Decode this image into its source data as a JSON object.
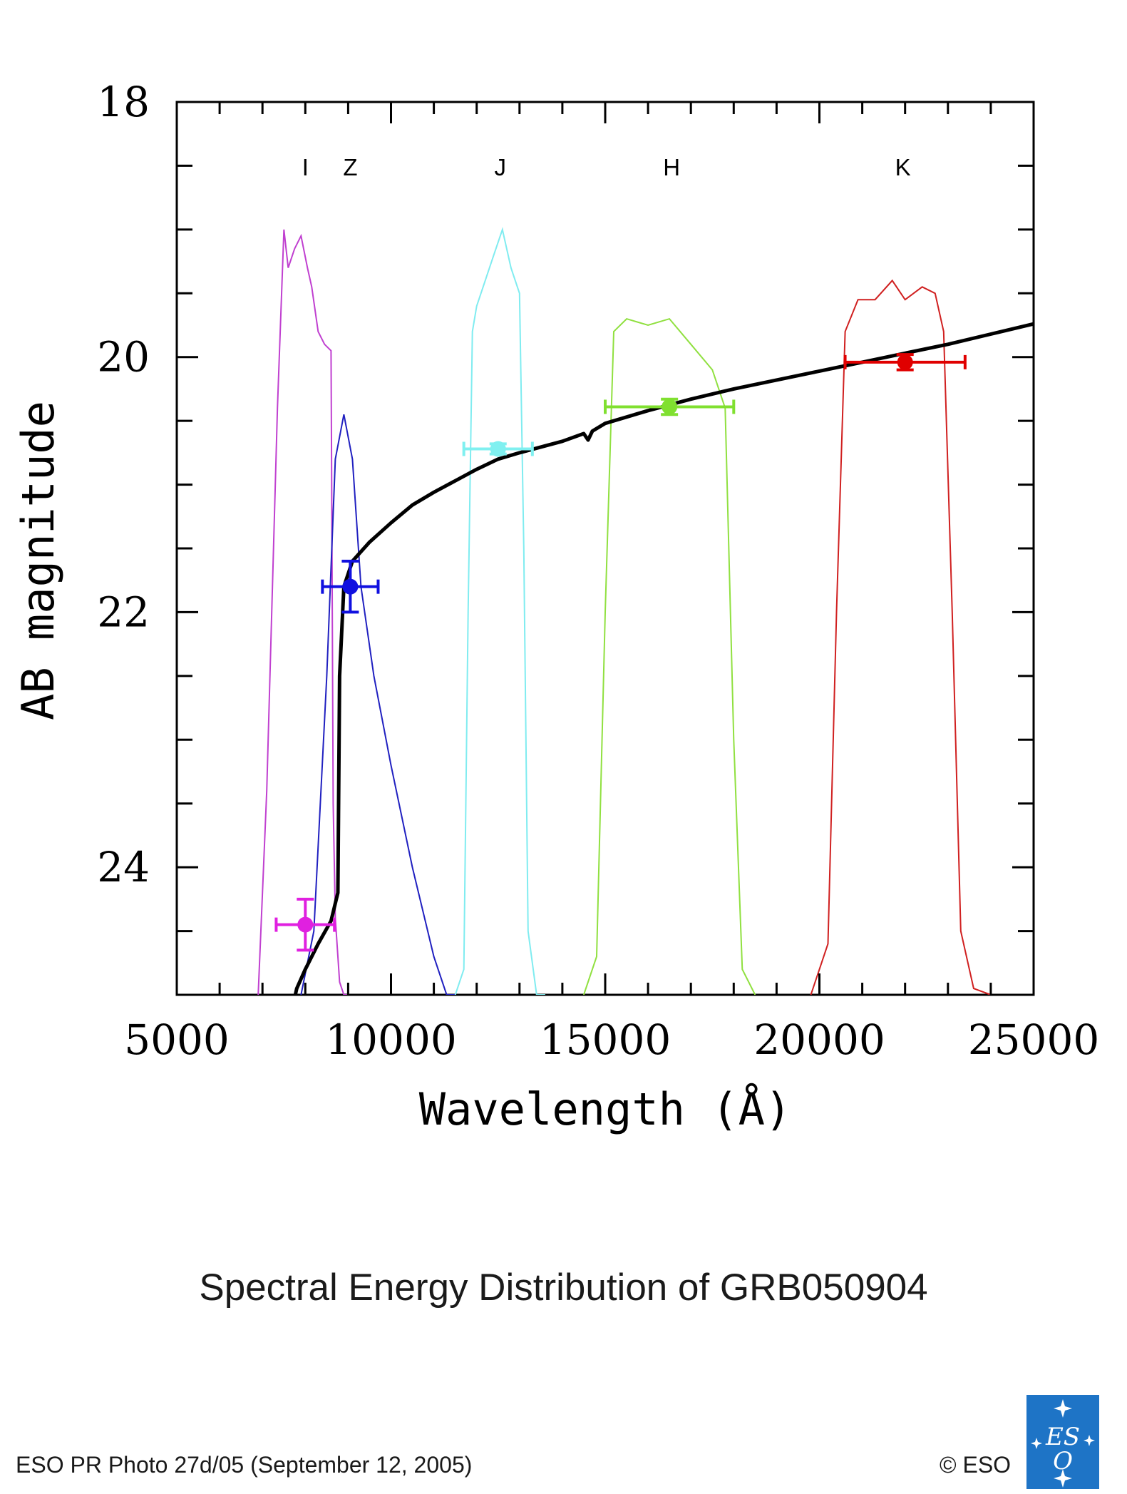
{
  "chart_data": {
    "type": "scatter",
    "title": "Spectral Energy Distribution of GRB050904",
    "xlabel": "Wavelength (Å)",
    "ylabel": "AB magnitude",
    "xlim": [
      5000,
      25000
    ],
    "ylim": [
      25,
      18
    ],
    "y_inverted": true,
    "x_ticks": [
      5000,
      10000,
      15000,
      20000,
      25000
    ],
    "x_tick_labels": [
      "5000",
      "10000",
      "15000",
      "20000",
      "25000"
    ],
    "y_ticks": [
      18,
      20,
      22,
      24
    ],
    "y_tick_labels": [
      "18",
      "20",
      "22",
      "24"
    ],
    "grid": false,
    "band_labels": [
      {
        "text": "I",
        "x": 8000
      },
      {
        "text": "Z",
        "x": 9050
      },
      {
        "text": "J",
        "x": 12550
      },
      {
        "text": "H",
        "x": 16550
      },
      {
        "text": "K",
        "x": 21950
      }
    ],
    "photometry": [
      {
        "band": "I",
        "x": 8000,
        "y": 24.45,
        "xerr": [
          680,
          680
        ],
        "yerr": [
          0.2,
          0.2
        ],
        "color": "#e020e0"
      },
      {
        "band": "Z",
        "x": 9050,
        "y": 21.8,
        "xerr": [
          650,
          650
        ],
        "yerr": [
          0.2,
          0.2
        ],
        "color": "#1010e0"
      },
      {
        "band": "J",
        "x": 12500,
        "y": 20.72,
        "xerr": [
          800,
          800
        ],
        "yerr": [
          0.04,
          0.04
        ],
        "color": "#80f0f0"
      },
      {
        "band": "H",
        "x": 16500,
        "y": 20.39,
        "xerr": [
          1500,
          1500
        ],
        "yerr": [
          0.06,
          0.06
        ],
        "color": "#80e030"
      },
      {
        "band": "K",
        "x": 22000,
        "y": 20.04,
        "xerr": [
          1400,
          1400
        ],
        "yerr": [
          0.06,
          0.06
        ],
        "color": "#e00000"
      }
    ],
    "model_curve": {
      "color": "#000000",
      "x": [
        7700,
        7800,
        8000,
        8300,
        8600,
        8760,
        8800,
        8900,
        9100,
        9500,
        10000,
        10500,
        11000,
        11500,
        12000,
        12500,
        13000,
        14000,
        14500,
        14600,
        14700,
        15000,
        16000,
        17000,
        18000,
        19000,
        20000,
        21000,
        22000,
        23000,
        24000,
        25000
      ],
      "y": [
        25.1,
        24.95,
        24.8,
        24.6,
        24.42,
        24.2,
        22.5,
        21.8,
        21.6,
        21.45,
        21.3,
        21.16,
        21.06,
        20.97,
        20.88,
        20.8,
        20.75,
        20.66,
        20.6,
        20.65,
        20.58,
        20.52,
        20.42,
        20.33,
        20.25,
        20.18,
        20.11,
        20.04,
        19.97,
        19.9,
        19.82,
        19.74
      ]
    },
    "filter_curves": [
      {
        "band": "I",
        "color": "#c040d0",
        "x": [
          6900,
          7100,
          7350,
          7500,
          7600,
          7750,
          7900,
          8050,
          8150,
          8300,
          8450,
          8600,
          8650,
          8700,
          8800,
          8900,
          9000
        ],
        "y": [
          25.0,
          23.4,
          20.4,
          19.0,
          19.3,
          19.15,
          19.05,
          19.3,
          19.45,
          19.8,
          19.9,
          19.95,
          23.5,
          24.4,
          24.9,
          25.0,
          25.0
        ]
      },
      {
        "band": "Z",
        "color": "#2020c0",
        "x": [
          7900,
          8200,
          8500,
          8700,
          8900,
          9100,
          9300,
          9600,
          10000,
          10500,
          11000,
          11300,
          11500
        ],
        "y": [
          25.0,
          24.5,
          22.5,
          20.8,
          20.45,
          20.8,
          21.8,
          22.5,
          23.2,
          24.0,
          24.7,
          25.0,
          25.0
        ]
      },
      {
        "band": "J",
        "color": "#80ecf0",
        "x": [
          11500,
          11700,
          11800,
          11900,
          12000,
          12200,
          12400,
          12600,
          12800,
          13000,
          13100,
          13200,
          13400,
          13600
        ],
        "y": [
          25.0,
          24.8,
          22.0,
          19.8,
          19.6,
          19.4,
          19.2,
          19.0,
          19.3,
          19.5,
          21.5,
          24.5,
          25.0,
          25.0
        ]
      },
      {
        "band": "H",
        "color": "#90e040",
        "x": [
          14500,
          14800,
          15000,
          15200,
          15500,
          16000,
          16500,
          17000,
          17500,
          17800,
          18000,
          18200,
          18500
        ],
        "y": [
          25.0,
          24.7,
          22.0,
          19.8,
          19.7,
          19.75,
          19.7,
          19.9,
          20.1,
          20.4,
          23.0,
          24.8,
          25.0
        ]
      },
      {
        "band": "K",
        "color": "#d02020",
        "x": [
          19800,
          20200,
          20400,
          20600,
          20900,
          21300,
          21700,
          22000,
          22400,
          22700,
          22900,
          23100,
          23300,
          23600,
          24000
        ],
        "y": [
          25.0,
          24.6,
          22.0,
          19.8,
          19.55,
          19.55,
          19.4,
          19.55,
          19.45,
          19.5,
          19.8,
          22.0,
          24.5,
          24.95,
          25.0
        ]
      }
    ]
  },
  "caption": "Spectral Energy Distribution of GRB050904",
  "credit_left": "ESO PR Photo 27d/05 (September 12, 2005)",
  "credit_right": "© ESO",
  "logo": {
    "text": "ESO",
    "color": "#1e74c6"
  }
}
